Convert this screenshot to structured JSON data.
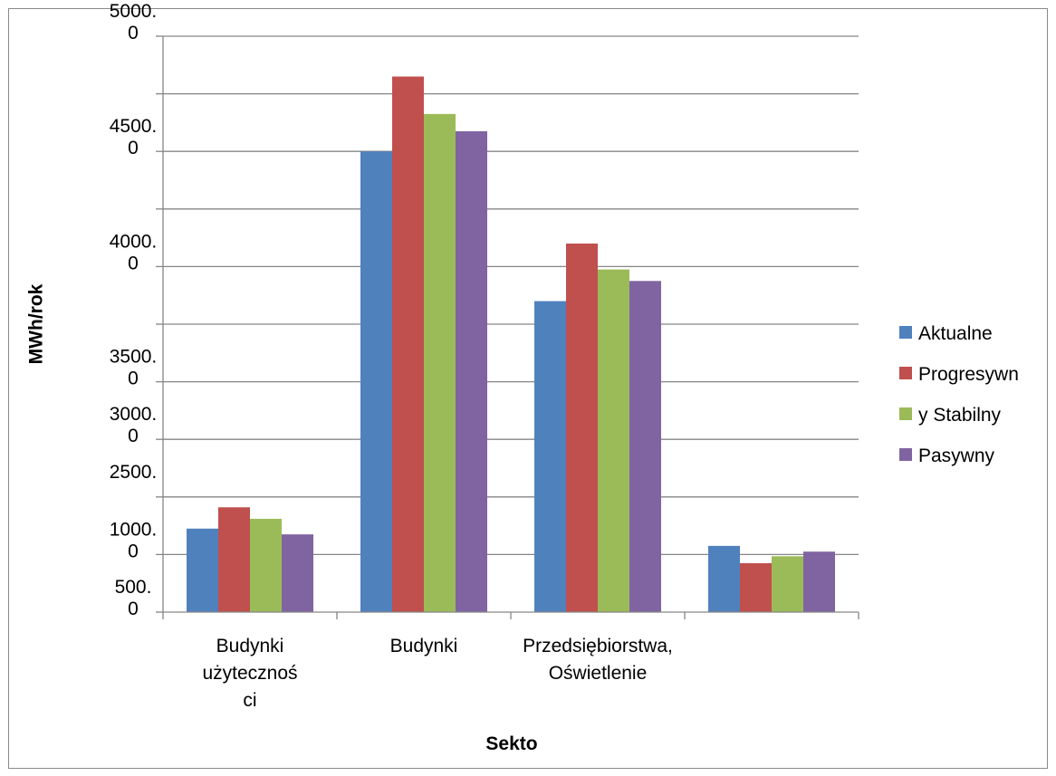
{
  "chart_data": {
    "type": "bar",
    "title": "",
    "xlabel": "Sekto",
    "ylabel": "MWh/rok",
    "grid": true,
    "legend_position": "right",
    "y_tick_labels": [
      [
        "500.",
        "0"
      ],
      [
        "1000.",
        "0"
      ],
      [
        "2500.",
        ""
      ],
      [
        "3000.",
        "0"
      ],
      [
        "3500.",
        "0"
      ],
      [
        "",
        ""
      ],
      [
        "4000.",
        "0"
      ],
      [
        "",
        ""
      ],
      [
        "4500.",
        "0"
      ],
      [
        "",
        ""
      ],
      [
        "5000.",
        "0"
      ]
    ],
    "ylim": [
      0,
      10
    ],
    "categories": [
      [
        "Budynki",
        "użytecznoś",
        "ci"
      ],
      [
        "Budynki"
      ],
      [
        "Przedsiębiorstwa,",
        "Oświetlenie"
      ],
      [
        ""
      ]
    ],
    "legend_lines": [
      "Aktualne",
      "Progresywn",
      "y Stabilny",
      "Pasywny"
    ],
    "series": [
      {
        "color": "#4F81BD",
        "values": [
          1.45,
          8.0,
          5.4,
          1.15
        ]
      },
      {
        "color": "#C0504D",
        "values": [
          1.82,
          9.3,
          6.4,
          0.85
        ]
      },
      {
        "color": "#9BBB59",
        "values": [
          1.62,
          8.65,
          5.95,
          0.97
        ]
      },
      {
        "color": "#8064A2",
        "values": [
          1.35,
          8.35,
          5.75,
          1.05
        ]
      }
    ]
  }
}
